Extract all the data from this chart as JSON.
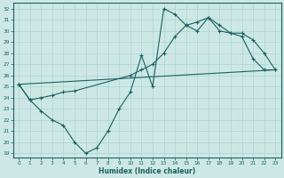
{
  "xlabel": "Humidex (Indice chaleur)",
  "bg_color": "#cde8e4",
  "line_color": "#1a6060",
  "grid_color": "#aad4d0",
  "xlim": [
    -0.5,
    23.5
  ],
  "ylim": [
    18.6,
    32.5
  ],
  "xticks": [
    0,
    1,
    2,
    3,
    4,
    5,
    6,
    7,
    8,
    9,
    10,
    11,
    12,
    13,
    14,
    15,
    16,
    17,
    18,
    19,
    20,
    21,
    22,
    23
  ],
  "yticks": [
    19,
    20,
    21,
    22,
    23,
    24,
    25,
    26,
    27,
    28,
    29,
    30,
    31,
    32
  ],
  "line1_x": [
    0,
    1,
    2,
    3,
    4,
    5,
    6,
    7,
    8,
    9,
    10,
    11,
    12,
    13,
    14,
    15,
    16,
    17,
    18,
    19,
    20,
    21,
    22,
    23
  ],
  "line1_y": [
    25.2,
    23.8,
    22.8,
    22.0,
    21.5,
    20.0,
    19.0,
    19.5,
    21.0,
    23.0,
    24.5,
    27.8,
    25.0,
    32.0,
    31.5,
    30.5,
    30.8,
    31.2,
    30.0,
    29.8,
    29.5,
    27.5,
    26.5,
    26.5
  ],
  "line2_x": [
    0,
    1,
    2,
    3,
    4,
    5,
    10,
    11,
    12,
    13,
    14,
    15,
    16,
    17,
    18,
    19,
    20,
    21,
    22,
    23
  ],
  "line2_y": [
    25.2,
    23.8,
    24.0,
    24.2,
    24.5,
    24.6,
    26.0,
    26.5,
    27.0,
    28.0,
    29.5,
    30.5,
    30.0,
    31.2,
    30.5,
    29.8,
    29.8,
    29.2,
    28.0,
    26.5
  ],
  "line3_x": [
    0,
    23
  ],
  "line3_y": [
    25.2,
    26.5
  ]
}
